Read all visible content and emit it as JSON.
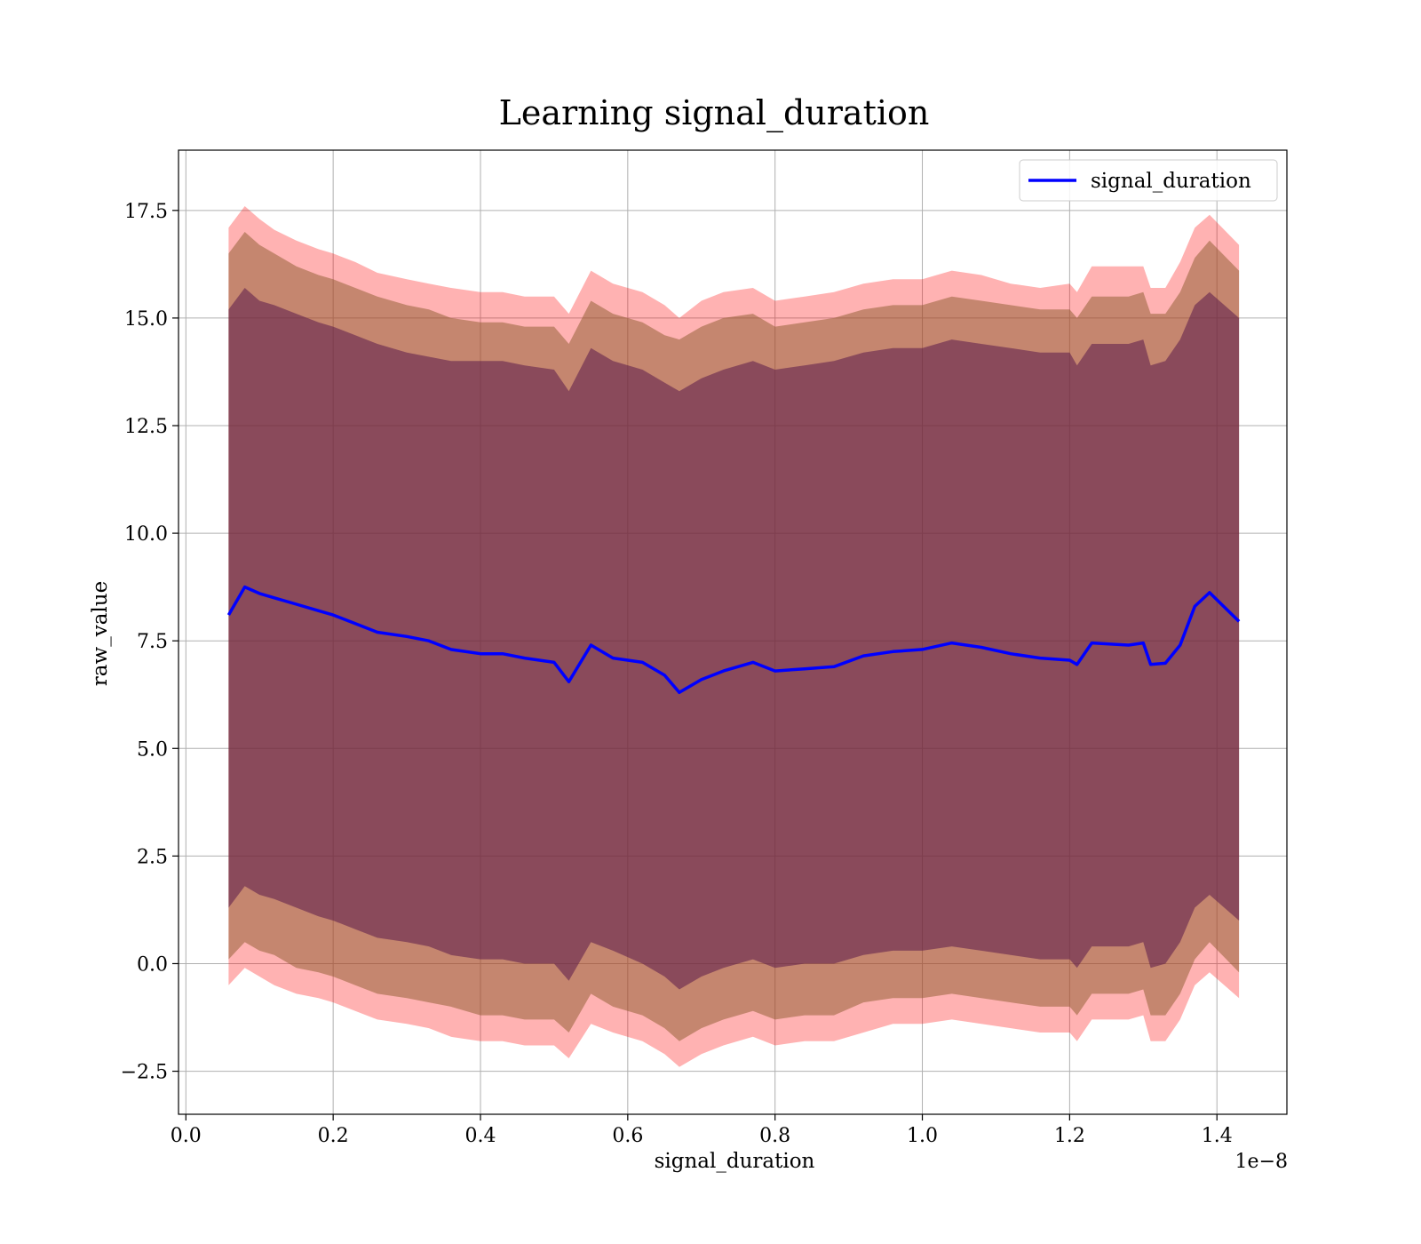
{
  "chart_data": {
    "type": "line",
    "title": "Learning signal_duration",
    "xlabel": "signal_duration",
    "ylabel": "raw_value",
    "x_offset_label": "1e−8",
    "xlim": [
      -0.01,
      1.495
    ],
    "ylim": [
      -3.5,
      18.9
    ],
    "x_ticks": [
      0.0,
      0.2,
      0.4,
      0.6,
      0.8,
      1.0,
      1.2,
      1.4
    ],
    "x_tick_labels": [
      "0.0",
      "0.2",
      "0.4",
      "0.6",
      "0.8",
      "1.0",
      "1.2",
      "1.4"
    ],
    "y_ticks": [
      -2.5,
      0.0,
      2.5,
      5.0,
      7.5,
      10.0,
      12.5,
      15.0,
      17.5
    ],
    "y_tick_labels": [
      "−2.5",
      "0.0",
      "2.5",
      "5.0",
      "7.5",
      "10.0",
      "12.5",
      "15.0",
      "17.5"
    ],
    "grid": true,
    "legend": {
      "placement": "top-right",
      "entries": [
        "signal_duration"
      ]
    },
    "colors": {
      "line": "#0000ff",
      "band_outer": "#ff0000",
      "band_middle": "#8b5a2b",
      "band_inner": "#5a1a4a"
    },
    "series": [
      {
        "name": "signal_duration",
        "x": [
          0.058,
          0.08,
          0.1,
          0.12,
          0.15,
          0.18,
          0.2,
          0.23,
          0.26,
          0.3,
          0.33,
          0.36,
          0.4,
          0.43,
          0.46,
          0.5,
          0.52,
          0.55,
          0.58,
          0.62,
          0.65,
          0.67,
          0.7,
          0.73,
          0.77,
          0.8,
          0.84,
          0.88,
          0.92,
          0.96,
          1.0,
          1.04,
          1.08,
          1.12,
          1.16,
          1.2,
          1.21,
          1.23,
          1.28,
          1.3,
          1.31,
          1.33,
          1.35,
          1.37,
          1.39,
          1.43
        ],
        "mean": [
          8.1,
          8.75,
          8.6,
          8.5,
          8.35,
          8.2,
          8.1,
          7.9,
          7.7,
          7.6,
          7.5,
          7.3,
          7.2,
          7.2,
          7.1,
          7.0,
          6.55,
          7.4,
          7.1,
          7.0,
          6.7,
          6.3,
          6.6,
          6.8,
          7.0,
          6.8,
          6.85,
          6.9,
          7.15,
          7.25,
          7.3,
          7.45,
          7.35,
          7.2,
          7.1,
          7.05,
          6.95,
          7.45,
          7.4,
          7.45,
          6.95,
          6.98,
          7.4,
          8.3,
          8.62,
          7.95
        ],
        "band_outer_upper": [
          17.1,
          17.6,
          17.3,
          17.05,
          16.8,
          16.6,
          16.5,
          16.3,
          16.05,
          15.9,
          15.8,
          15.7,
          15.6,
          15.6,
          15.5,
          15.5,
          15.1,
          16.1,
          15.8,
          15.6,
          15.3,
          15.0,
          15.4,
          15.6,
          15.7,
          15.4,
          15.5,
          15.6,
          15.8,
          15.9,
          15.9,
          16.1,
          16.0,
          15.8,
          15.7,
          15.8,
          15.6,
          16.2,
          16.2,
          16.2,
          15.7,
          15.7,
          16.3,
          17.1,
          17.4,
          16.7
        ],
        "band_outer_lower": [
          -0.5,
          -0.1,
          -0.3,
          -0.5,
          -0.7,
          -0.8,
          -0.9,
          -1.1,
          -1.3,
          -1.4,
          -1.5,
          -1.7,
          -1.8,
          -1.8,
          -1.9,
          -1.9,
          -2.2,
          -1.4,
          -1.6,
          -1.8,
          -2.1,
          -2.4,
          -2.1,
          -1.9,
          -1.7,
          -1.9,
          -1.8,
          -1.8,
          -1.6,
          -1.4,
          -1.4,
          -1.3,
          -1.4,
          -1.5,
          -1.6,
          -1.6,
          -1.8,
          -1.3,
          -1.3,
          -1.2,
          -1.8,
          -1.8,
          -1.3,
          -0.5,
          -0.2,
          -0.8
        ],
        "band_middle_upper": [
          16.5,
          17.0,
          16.7,
          16.5,
          16.2,
          16.0,
          15.9,
          15.7,
          15.5,
          15.3,
          15.2,
          15.0,
          14.9,
          14.9,
          14.8,
          14.8,
          14.4,
          15.4,
          15.1,
          14.9,
          14.6,
          14.5,
          14.8,
          15.0,
          15.1,
          14.8,
          14.9,
          15.0,
          15.2,
          15.3,
          15.3,
          15.5,
          15.4,
          15.3,
          15.2,
          15.2,
          15.0,
          15.5,
          15.5,
          15.6,
          15.1,
          15.1,
          15.6,
          16.4,
          16.8,
          16.1
        ],
        "band_middle_lower": [
          0.1,
          0.5,
          0.3,
          0.2,
          -0.1,
          -0.2,
          -0.3,
          -0.5,
          -0.7,
          -0.8,
          -0.9,
          -1.0,
          -1.2,
          -1.2,
          -1.3,
          -1.3,
          -1.6,
          -0.7,
          -1.0,
          -1.2,
          -1.5,
          -1.8,
          -1.5,
          -1.3,
          -1.1,
          -1.3,
          -1.2,
          -1.2,
          -0.9,
          -0.8,
          -0.8,
          -0.7,
          -0.8,
          -0.9,
          -1.0,
          -1.0,
          -1.2,
          -0.7,
          -0.7,
          -0.6,
          -1.2,
          -1.2,
          -0.7,
          0.1,
          0.5,
          -0.2
        ],
        "band_inner_upper": [
          15.2,
          15.7,
          15.4,
          15.3,
          15.1,
          14.9,
          14.8,
          14.6,
          14.4,
          14.2,
          14.1,
          14.0,
          14.0,
          14.0,
          13.9,
          13.8,
          13.3,
          14.3,
          14.0,
          13.8,
          13.5,
          13.3,
          13.6,
          13.8,
          14.0,
          13.8,
          13.9,
          14.0,
          14.2,
          14.3,
          14.3,
          14.5,
          14.4,
          14.3,
          14.2,
          14.2,
          13.9,
          14.4,
          14.4,
          14.5,
          13.9,
          14.0,
          14.5,
          15.3,
          15.6,
          15.0
        ],
        "band_inner_lower": [
          1.3,
          1.8,
          1.6,
          1.5,
          1.3,
          1.1,
          1.0,
          0.8,
          0.6,
          0.5,
          0.4,
          0.2,
          0.1,
          0.1,
          0.0,
          0.0,
          -0.4,
          0.5,
          0.3,
          0.0,
          -0.3,
          -0.6,
          -0.3,
          -0.1,
          0.1,
          -0.1,
          0.0,
          0.0,
          0.2,
          0.3,
          0.3,
          0.4,
          0.3,
          0.2,
          0.1,
          0.1,
          -0.1,
          0.4,
          0.4,
          0.5,
          -0.1,
          0.0,
          0.5,
          1.3,
          1.6,
          1.0
        ]
      }
    ]
  }
}
